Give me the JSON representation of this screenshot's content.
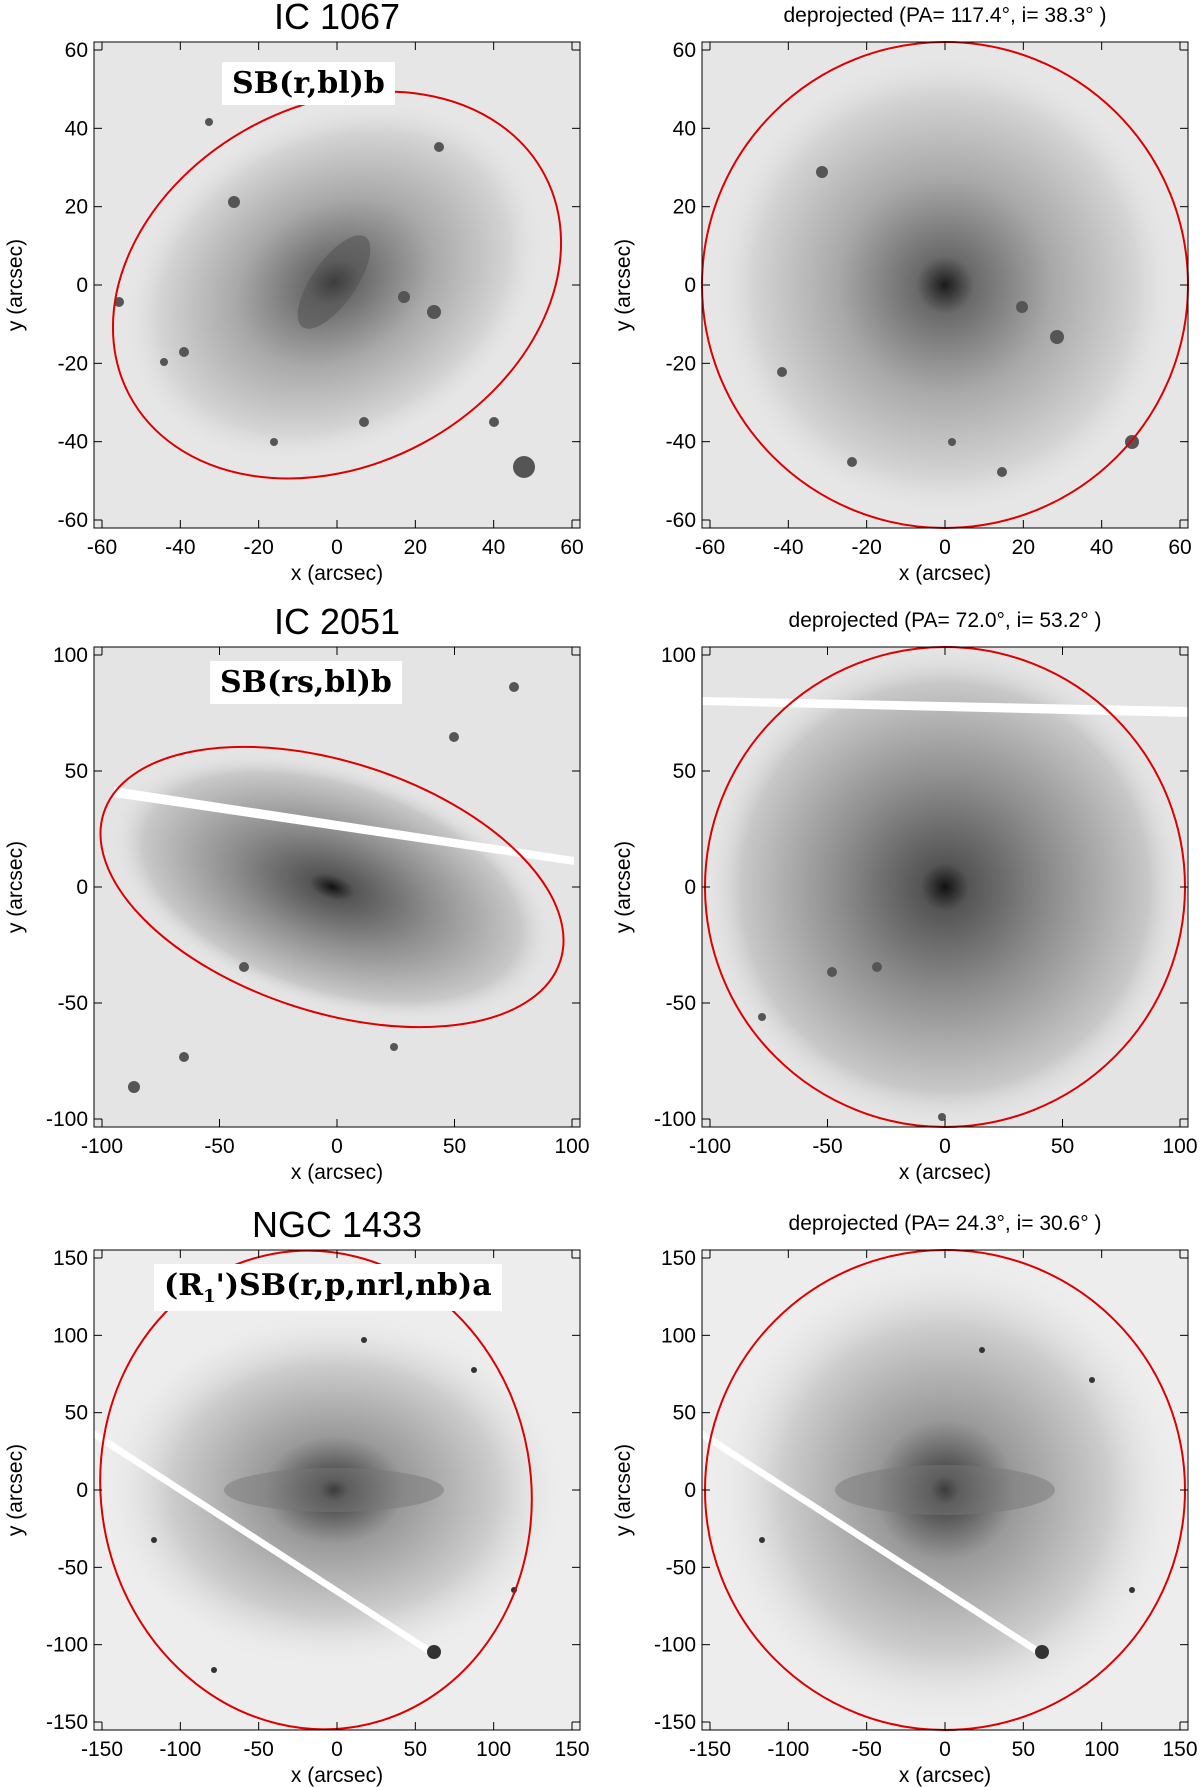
{
  "figure": {
    "rows": [
      {
        "original": {
          "title": "IC 1067",
          "classification": "SB(r,bl)b",
          "ticks": [
            "-60",
            "-40",
            "-20",
            "0",
            "20",
            "40",
            "60"
          ],
          "xlabel": "x (arcsec)",
          "ylabel": "y (arcsec)"
        },
        "deprojected": {
          "title": "deprojected  (PA= 117.4°, i= 38.3° )",
          "ticks": [
            "-60",
            "-40",
            "-20",
            "0",
            "20",
            "40",
            "60"
          ],
          "xlabel": "x (arcsec)",
          "ylabel": "y (arcsec)"
        }
      },
      {
        "original": {
          "title": "IC 2051",
          "classification": "SB(rs,bl)b",
          "ticks": [
            "-100",
            "-50",
            "0",
            "50",
            "100"
          ],
          "xlabel": "x (arcsec)",
          "ylabel": "y (arcsec)"
        },
        "deprojected": {
          "title": "deprojected  (PA= 72.0°, i= 53.2° )",
          "ticks": [
            "-100",
            "-50",
            "0",
            "50",
            "100"
          ],
          "xlabel": "x (arcsec)",
          "ylabel": "y (arcsec)"
        }
      },
      {
        "original": {
          "title": "NGC 1433",
          "classification": "(R1')SB(r,p,nrl,nb)a",
          "ticks": [
            "-150",
            "-100",
            "-50",
            "0",
            "50",
            "100",
            "150"
          ],
          "xlabel": "x (arcsec)",
          "ylabel": "y (arcsec)"
        },
        "deprojected": {
          "title": "deprojected  (PA= 24.3°, i= 30.6° )",
          "ticks": [
            "-150",
            "-100",
            "-50",
            "0",
            "50",
            "100",
            "150"
          ],
          "xlabel": "x (arcsec)",
          "ylabel": "y (arcsec)"
        }
      }
    ],
    "colors": {
      "ellipse": "#dd0000",
      "galaxy": "#444444",
      "background": "#ffffff"
    }
  }
}
